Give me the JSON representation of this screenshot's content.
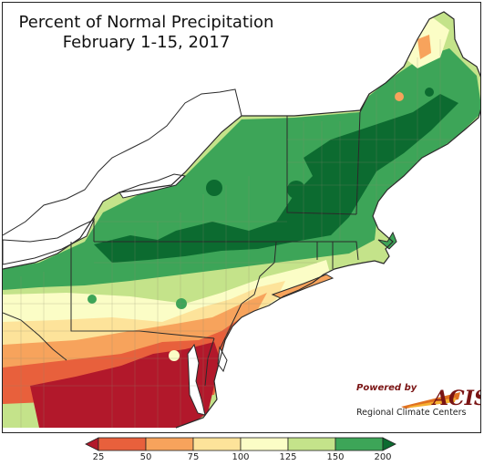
{
  "title": {
    "line1": "Percent of Normal Precipitation",
    "line2": "February 1-15, 2017"
  },
  "logo": {
    "powered_by": "Powered by",
    "name": "ACIS",
    "subtitle": "Regional Climate Centers"
  },
  "legend": {
    "bins": [
      {
        "color": "#b2182b"
      },
      {
        "color": "#e8603c"
      },
      {
        "color": "#f7a35c"
      },
      {
        "color": "#fde39a"
      },
      {
        "color": "#fbfdc6"
      },
      {
        "color": "#c4e38a"
      },
      {
        "color": "#3da558"
      },
      {
        "color": "#0c6b30"
      }
    ],
    "tick_labels": [
      "25",
      "50",
      "75",
      "100",
      "125",
      "150",
      "200"
    ]
  },
  "colors": {
    "water": "#ffffff",
    "outside": "#ffffff",
    "state_border": "#2a2a2a",
    "county_line": "#8c8c6e"
  }
}
